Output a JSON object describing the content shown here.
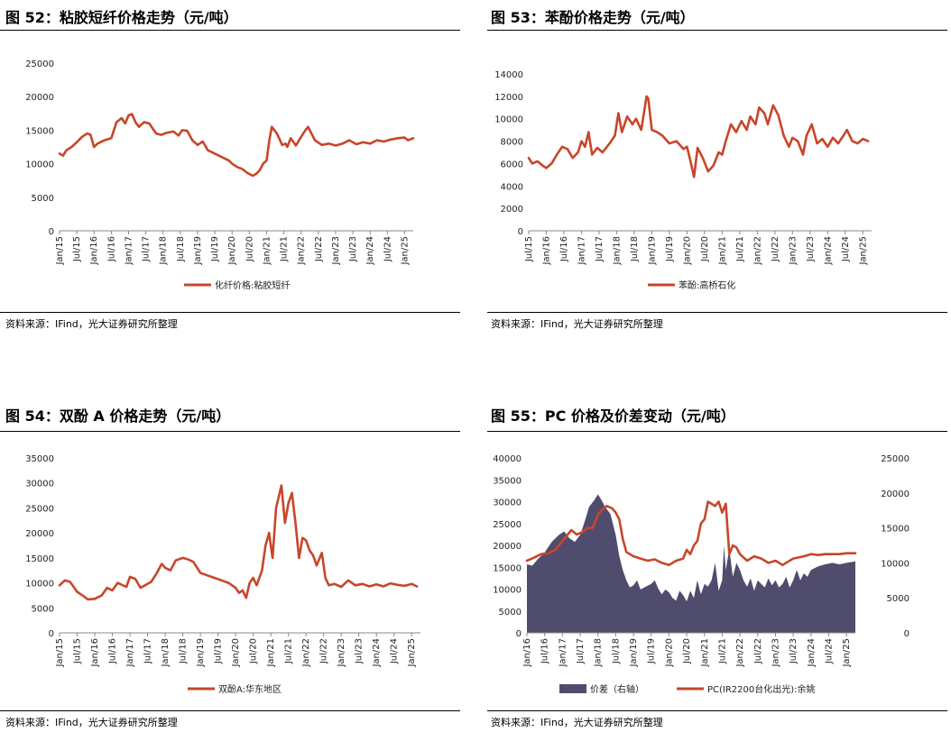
{
  "source_text": "资料来源：IFind，光大证券研究所整理",
  "colors": {
    "line": "#C8462A",
    "area": "#4F4C6E",
    "rule": "#000000"
  },
  "chart_data": [
    {
      "id": "c52",
      "type": "line",
      "title": "图 52：粘胶短纤价格走势（元/吨）",
      "ylim": [
        0,
        25000
      ],
      "yticks": [
        0,
        5000,
        10000,
        15000,
        20000,
        25000
      ],
      "x_range": [
        2015.0,
        2025.25
      ],
      "x_tick_labels": [
        "Jan/15",
        "Jul/15",
        "Jan/16",
        "Jul/16",
        "Jan/17",
        "Jul/17",
        "Jan/18",
        "Jul/18",
        "Jan/19",
        "Jul/19",
        "Jan/20",
        "Jul/20",
        "Jan/21",
        "Jul/21",
        "Jan/22",
        "Jul/22",
        "Jan/23",
        "Jul/23",
        "Jan/24",
        "Jul/24",
        "Jan/25"
      ],
      "legend": [
        "化纤价格:粘胶短纤"
      ],
      "series": [
        {
          "name": "化纤价格:粘胶短纤",
          "x": [
            2015.0,
            2015.1,
            2015.2,
            2015.35,
            2015.5,
            2015.65,
            2015.8,
            2015.9,
            2016.0,
            2016.1,
            2016.3,
            2016.5,
            2016.65,
            2016.8,
            2016.9,
            2017.0,
            2017.1,
            2017.2,
            2017.3,
            2017.45,
            2017.6,
            2017.8,
            2017.95,
            2018.1,
            2018.3,
            2018.45,
            2018.55,
            2018.7,
            2018.85,
            2019.0,
            2019.15,
            2019.3,
            2019.5,
            2019.7,
            2019.9,
            2020.0,
            2020.15,
            2020.3,
            2020.45,
            2020.6,
            2020.7,
            2020.8,
            2020.9,
            2021.0,
            2021.08,
            2021.15,
            2021.3,
            2021.45,
            2021.55,
            2021.6,
            2021.7,
            2021.85,
            2022.0,
            2022.1,
            2022.2,
            2022.3,
            2022.4,
            2022.6,
            2022.8,
            2023.0,
            2023.2,
            2023.4,
            2023.6,
            2023.8,
            2024.0,
            2024.2,
            2024.4,
            2024.6,
            2024.8,
            2025.0,
            2025.1,
            2025.25
          ],
          "values": [
            11500,
            11200,
            12000,
            12500,
            13200,
            14000,
            14500,
            14300,
            12500,
            13000,
            13500,
            13800,
            16200,
            16800,
            16000,
            17200,
            17400,
            16200,
            15500,
            16200,
            16000,
            14500,
            14300,
            14600,
            14800,
            14200,
            15000,
            14900,
            13500,
            12800,
            13300,
            12000,
            11500,
            11000,
            10500,
            10000,
            9500,
            9200,
            8600,
            8200,
            8500,
            9000,
            10000,
            10500,
            13500,
            15500,
            14500,
            12800,
            13000,
            12500,
            13800,
            12700,
            14000,
            14800,
            15500,
            14500,
            13500,
            12800,
            13000,
            12700,
            13000,
            13500,
            12900,
            13200,
            13000,
            13500,
            13300,
            13600,
            13800,
            13900,
            13500,
            13800
          ]
        }
      ]
    },
    {
      "id": "c53",
      "type": "line",
      "title": "图 53：苯酚价格走势（元/吨）",
      "ylim": [
        0,
        14000
      ],
      "yticks": [
        0,
        2000,
        4000,
        6000,
        8000,
        10000,
        12000,
        14000
      ],
      "x_range": [
        2015.5,
        2025.25
      ],
      "x_tick_labels": [
        "Jul/15",
        "Jan/16",
        "Jul/16",
        "Jan/17",
        "Jul/17",
        "Jan/18",
        "Jul/18",
        "Jan/19",
        "Jul/19",
        "Jan/20",
        "Jul/20",
        "Jan/21",
        "Jul/21",
        "Jan/22",
        "Jul/22",
        "Jan/23",
        "Jul/23",
        "Jan/24",
        "Jul/24",
        "Jan/25"
      ],
      "legend": [
        "苯酚:高桥石化"
      ],
      "series": [
        {
          "name": "苯酚:高桥石化",
          "x": [
            2015.5,
            2015.6,
            2015.75,
            2015.9,
            2016.0,
            2016.15,
            2016.3,
            2016.45,
            2016.6,
            2016.75,
            2016.9,
            2017.0,
            2017.1,
            2017.2,
            2017.3,
            2017.45,
            2017.6,
            2017.8,
            2017.95,
            2018.05,
            2018.15,
            2018.3,
            2018.45,
            2018.55,
            2018.7,
            2018.85,
            2018.9,
            2019.0,
            2019.15,
            2019.3,
            2019.5,
            2019.7,
            2019.9,
            2020.0,
            2020.1,
            2020.2,
            2020.3,
            2020.45,
            2020.6,
            2020.75,
            2020.9,
            2021.0,
            2021.1,
            2021.25,
            2021.4,
            2021.55,
            2021.7,
            2021.8,
            2021.95,
            2022.05,
            2022.2,
            2022.3,
            2022.45,
            2022.6,
            2022.75,
            2022.9,
            2023.0,
            2023.15,
            2023.3,
            2023.4,
            2023.55,
            2023.7,
            2023.85,
            2024.0,
            2024.15,
            2024.3,
            2024.45,
            2024.55,
            2024.7,
            2024.85,
            2025.0,
            2025.15
          ],
          "values": [
            6500,
            6000,
            6200,
            5800,
            5600,
            6000,
            6800,
            7500,
            7300,
            6500,
            7000,
            8000,
            7500,
            8800,
            6800,
            7400,
            7000,
            7800,
            8500,
            10500,
            8800,
            10200,
            9500,
            10000,
            9000,
            12000,
            11800,
            9000,
            8800,
            8500,
            7800,
            8000,
            7300,
            7500,
            6200,
            4800,
            7400,
            6500,
            5300,
            5800,
            7000,
            6800,
            8000,
            9500,
            8800,
            9800,
            9000,
            10200,
            9500,
            11000,
            10500,
            9500,
            11200,
            10300,
            8500,
            7500,
            8300,
            8000,
            6800,
            8500,
            9500,
            7800,
            8200,
            7500,
            8300,
            7800,
            8500,
            9000,
            8000,
            7800,
            8200,
            8000
          ]
        }
      ]
    },
    {
      "id": "c54",
      "type": "line",
      "title": "图 54：双酚 A 价格走势（元/吨）",
      "ylim": [
        0,
        35000
      ],
      "yticks": [
        0,
        5000,
        10000,
        15000,
        20000,
        25000,
        30000,
        35000
      ],
      "x_range": [
        2015.0,
        2025.25
      ],
      "x_tick_labels": [
        "Jan/15",
        "Jul/15",
        "Jan/16",
        "Jul/16",
        "Jan/17",
        "Jul/17",
        "Jan/18",
        "Jul/18",
        "Jan/19",
        "Jul/19",
        "Jan/20",
        "Jul/20",
        "Jan/21",
        "Jul/21",
        "Jan/22",
        "Jul/22",
        "Jan/23",
        "Jul/23",
        "Jan/24",
        "Jul/24",
        "Jan/25"
      ],
      "legend": [
        "双酚A:华东地区"
      ],
      "series": [
        {
          "name": "双酚A:华东地区",
          "x": [
            2015.0,
            2015.15,
            2015.3,
            2015.5,
            2015.65,
            2015.8,
            2016.0,
            2016.2,
            2016.35,
            2016.5,
            2016.65,
            2016.8,
            2016.9,
            2017.0,
            2017.15,
            2017.3,
            2017.45,
            2017.6,
            2017.75,
            2017.9,
            2018.0,
            2018.15,
            2018.3,
            2018.5,
            2018.65,
            2018.8,
            2019.0,
            2019.2,
            2019.4,
            2019.6,
            2019.8,
            2020.0,
            2020.1,
            2020.2,
            2020.3,
            2020.4,
            2020.5,
            2020.6,
            2020.75,
            2020.85,
            2020.95,
            2021.05,
            2021.15,
            2021.3,
            2021.4,
            2021.5,
            2021.6,
            2021.7,
            2021.8,
            2021.9,
            2022.0,
            2022.1,
            2022.2,
            2022.3,
            2022.45,
            2022.55,
            2022.65,
            2022.8,
            2023.0,
            2023.2,
            2023.4,
            2023.6,
            2023.8,
            2024.0,
            2024.2,
            2024.4,
            2024.6,
            2024.8,
            2025.0,
            2025.15
          ],
          "values": [
            9500,
            10500,
            10200,
            8200,
            7500,
            6700,
            6800,
            7500,
            9000,
            8500,
            10000,
            9500,
            9200,
            11200,
            10800,
            9000,
            9600,
            10200,
            11800,
            13800,
            13000,
            12500,
            14500,
            15000,
            14700,
            14200,
            12000,
            11500,
            11000,
            10500,
            10000,
            9000,
            8000,
            8500,
            7000,
            10000,
            11000,
            9500,
            12500,
            17500,
            20000,
            15000,
            25000,
            29500,
            22000,
            26000,
            28000,
            22000,
            15000,
            19000,
            18500,
            16500,
            15500,
            13500,
            16000,
            11000,
            9500,
            9800,
            9200,
            10500,
            9500,
            9800,
            9300,
            9700,
            9300,
            9900,
            9600,
            9400,
            9800,
            9300
          ]
        }
      ]
    },
    {
      "id": "c55",
      "type": "area+line",
      "title": "图 55：PC 价格及价差变动（元/吨）",
      "ylim_left": [
        0,
        40000
      ],
      "yticks_left": [
        0,
        5000,
        10000,
        15000,
        20000,
        25000,
        30000,
        35000,
        40000
      ],
      "ylim_right": [
        0,
        25000
      ],
      "yticks_right": [
        0,
        5000,
        10000,
        15000,
        20000,
        25000
      ],
      "x_range": [
        2016.0,
        2025.25
      ],
      "x_tick_labels": [
        "Jan/16",
        "Jul/16",
        "Jan/17",
        "Jul/17",
        "Jan/18",
        "Jul/18",
        "Jan/19",
        "Jul/19",
        "Jan/20",
        "Jul/20",
        "Jan/21",
        "Jul/21",
        "Jan/22",
        "Jul/22",
        "Jan/23",
        "Jul/23",
        "Jan/24",
        "Jul/24",
        "Jan/25"
      ],
      "legend": [
        "价差（右轴）",
        "PC(IR2200台化出光):余姚"
      ],
      "series": [
        {
          "name": "价差（右轴）",
          "axis": "right",
          "type": "area",
          "x": [
            2016.0,
            2016.15,
            2016.3,
            2016.5,
            2016.7,
            2016.9,
            2017.05,
            2017.2,
            2017.35,
            2017.5,
            2017.6,
            2017.75,
            2017.9,
            2018.0,
            2018.1,
            2018.2,
            2018.35,
            2018.5,
            2018.6,
            2018.7,
            2018.8,
            2018.9,
            2019.0,
            2019.1,
            2019.2,
            2019.35,
            2019.5,
            2019.6,
            2019.7,
            2019.8,
            2019.9,
            2020.0,
            2020.1,
            2020.2,
            2020.3,
            2020.4,
            2020.5,
            2020.6,
            2020.7,
            2020.8,
            2020.9,
            2021.0,
            2021.1,
            2021.2,
            2021.3,
            2021.4,
            2021.5,
            2021.55,
            2021.6,
            2021.7,
            2021.8,
            2021.9,
            2022.0,
            2022.1,
            2022.2,
            2022.3,
            2022.4,
            2022.5,
            2022.6,
            2022.7,
            2022.8,
            2022.9,
            2023.0,
            2023.1,
            2023.2,
            2023.3,
            2023.4,
            2023.5,
            2023.6,
            2023.7,
            2023.8,
            2023.9,
            2024.0,
            2024.2,
            2024.4,
            2024.6,
            2024.8,
            2025.0,
            2025.25
          ],
          "values": [
            9800,
            9600,
            10500,
            11500,
            13000,
            14000,
            14500,
            13500,
            13000,
            14000,
            15500,
            18000,
            19000,
            19800,
            19000,
            18000,
            17000,
            14000,
            11000,
            9000,
            7500,
            6500,
            6800,
            7500,
            6200,
            6600,
            7000,
            7500,
            6300,
            5500,
            6200,
            5800,
            5000,
            4600,
            6000,
            5400,
            4500,
            6000,
            5000,
            7500,
            5500,
            7000,
            6600,
            7500,
            10000,
            6000,
            7500,
            12500,
            9000,
            12000,
            8000,
            10000,
            9000,
            7500,
            6600,
            7800,
            6000,
            7500,
            7000,
            6500,
            7800,
            6800,
            7500,
            6500,
            7000,
            8000,
            6500,
            7500,
            9000,
            7500,
            8500,
            8000,
            9000,
            9500,
            9800,
            10000,
            9800,
            10000,
            10200
          ]
        },
        {
          "name": "PC(IR2200台化出光):余姚",
          "axis": "left",
          "type": "line",
          "x": [
            2016.0,
            2016.2,
            2016.4,
            2016.6,
            2016.8,
            2017.0,
            2017.1,
            2017.25,
            2017.4,
            2017.55,
            2017.7,
            2017.85,
            2018.0,
            2018.1,
            2018.25,
            2018.4,
            2018.5,
            2018.6,
            2018.7,
            2018.8,
            2019.0,
            2019.2,
            2019.4,
            2019.6,
            2019.8,
            2020.0,
            2020.2,
            2020.4,
            2020.5,
            2020.6,
            2020.7,
            2020.8,
            2020.9,
            2021.0,
            2021.1,
            2021.2,
            2021.3,
            2021.4,
            2021.5,
            2021.6,
            2021.7,
            2021.8,
            2021.9,
            2022.0,
            2022.2,
            2022.4,
            2022.6,
            2022.8,
            2023.0,
            2023.2,
            2023.5,
            2023.8,
            2024.0,
            2024.2,
            2024.4,
            2024.6,
            2024.8,
            2025.0,
            2025.25
          ],
          "values": [
            16500,
            17200,
            18000,
            18200,
            19000,
            21000,
            22000,
            23500,
            22500,
            23000,
            24000,
            24000,
            27000,
            28000,
            29000,
            28500,
            27500,
            26000,
            21500,
            18500,
            17500,
            17000,
            16500,
            16800,
            16000,
            15500,
            16500,
            17000,
            19000,
            18000,
            20000,
            21000,
            25000,
            26000,
            30000,
            29500,
            29000,
            30000,
            27500,
            29500,
            18000,
            20000,
            19500,
            18000,
            16500,
            17500,
            17000,
            16000,
            16500,
            15500,
            17000,
            17500,
            18000,
            17800,
            18000,
            18000,
            18000,
            18200,
            18200
          ]
        }
      ]
    }
  ]
}
